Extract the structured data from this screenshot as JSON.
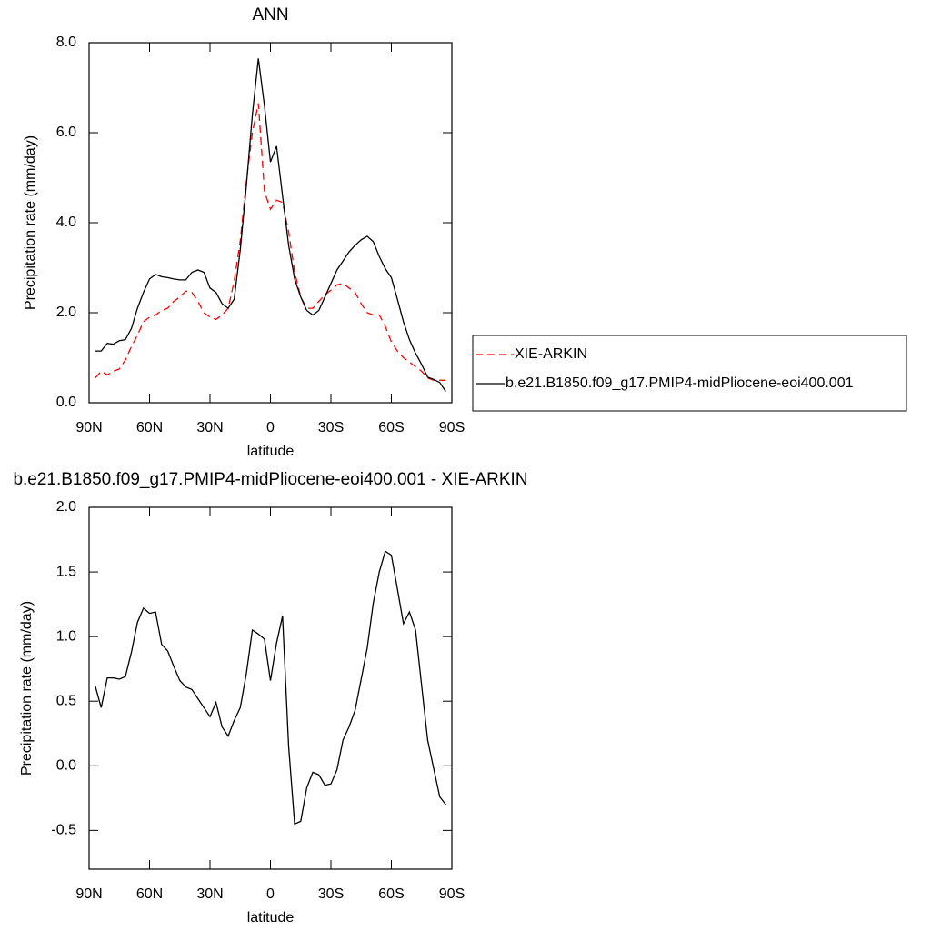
{
  "chart_data": [
    {
      "type": "line",
      "title": "ANN",
      "x_label": "latitude",
      "y_label": "Precipitation rate (mm/day)",
      "x": [
        87,
        84,
        81,
        78,
        75,
        72,
        69,
        66,
        63,
        60,
        57,
        54,
        51,
        48,
        45,
        42,
        39,
        36,
        33,
        30,
        27,
        24,
        21,
        18,
        15,
        12,
        9,
        6,
        3,
        0,
        -3,
        -6,
        -9,
        -12,
        -15,
        -18,
        -21,
        -24,
        -27,
        -30,
        -33,
        -36,
        -39,
        -42,
        -45,
        -48,
        -51,
        -54,
        -57,
        -60,
        -63,
        -66,
        -69,
        -72,
        -75,
        -78,
        -81,
        -84,
        -87
      ],
      "series": [
        {
          "name": "XIE-ARKIN",
          "color": "#ff0000",
          "line_style": "dashed",
          "values": [
            0.55,
            0.7,
            0.62,
            0.7,
            0.75,
            0.95,
            1.25,
            1.5,
            1.8,
            1.9,
            1.95,
            2.05,
            2.1,
            2.25,
            2.35,
            2.48,
            2.45,
            2.25,
            2.0,
            1.9,
            1.85,
            1.95,
            2.1,
            2.7,
            3.6,
            4.9,
            6.0,
            6.65,
            4.7,
            4.3,
            4.5,
            4.45,
            3.8,
            2.9,
            2.35,
            2.1,
            2.1,
            2.25,
            2.4,
            2.5,
            2.62,
            2.65,
            2.55,
            2.45,
            2.2,
            2.0,
            1.95,
            1.95,
            1.7,
            1.35,
            1.15,
            1.0,
            0.9,
            0.8,
            0.7,
            0.55,
            0.5,
            0.5,
            0.5
          ]
        },
        {
          "name": "b.e21.B1850.f09_g17.PMIP4-midPliocene-eoi400.001",
          "color": "#000000",
          "line_style": "solid",
          "values": [
            1.15,
            1.15,
            1.32,
            1.3,
            1.38,
            1.4,
            1.65,
            2.1,
            2.45,
            2.75,
            2.85,
            2.8,
            2.78,
            2.75,
            2.73,
            2.73,
            2.9,
            2.95,
            2.9,
            2.55,
            2.45,
            2.2,
            2.1,
            2.3,
            3.4,
            4.8,
            6.4,
            7.65,
            6.6,
            5.35,
            5.7,
            4.6,
            3.5,
            2.75,
            2.35,
            2.05,
            1.95,
            2.05,
            2.35,
            2.65,
            2.95,
            3.15,
            3.35,
            3.5,
            3.62,
            3.7,
            3.58,
            3.25,
            2.98,
            2.78,
            2.3,
            1.8,
            1.4,
            1.1,
            0.85,
            0.57,
            0.52,
            0.45,
            0.25
          ]
        }
      ],
      "xlim": [
        90,
        -90
      ],
      "xticks": [
        {
          "value": 90,
          "label": "90N"
        },
        {
          "value": 60,
          "label": "60N"
        },
        {
          "value": 30,
          "label": "30N"
        },
        0,
        {
          "value": -30,
          "label": "30S"
        },
        {
          "value": -60,
          "label": "60S"
        },
        {
          "value": -90,
          "label": "90S"
        }
      ],
      "ylim": [
        0,
        8
      ],
      "yticks": [
        {
          "value": 0,
          "label": "0.0"
        },
        {
          "value": 2,
          "label": "2.0"
        },
        {
          "value": 4,
          "label": "4.0"
        },
        {
          "value": 6,
          "label": "6.0"
        },
        {
          "value": 8,
          "label": "8.0"
        }
      ],
      "legend": "right"
    },
    {
      "type": "line",
      "title": "b.e21.B1850.f09_g17.PMIP4-midPliocene-eoi400.001 - XIE-ARKIN",
      "x_label": "latitude",
      "y_label": "Precipitation rate (mm/day)",
      "x": [
        87,
        84,
        81,
        78,
        75,
        72,
        69,
        66,
        63,
        60,
        57,
        54,
        51,
        48,
        45,
        42,
        39,
        36,
        33,
        30,
        27,
        24,
        21,
        18,
        15,
        12,
        9,
        6,
        3,
        0,
        -3,
        -6,
        -9,
        -12,
        -15,
        -18,
        -21,
        -24,
        -27,
        -30,
        -33,
        -36,
        -39,
        -42,
        -45,
        -48,
        -51,
        -54,
        -57,
        -60,
        -63,
        -66,
        -69,
        -72,
        -75,
        -78,
        -81,
        -84,
        -87
      ],
      "values": [
        0.62,
        0.45,
        0.68,
        0.68,
        0.67,
        0.69,
        0.88,
        1.11,
        1.22,
        1.18,
        1.19,
        0.94,
        0.89,
        0.77,
        0.66,
        0.61,
        0.59,
        0.52,
        0.45,
        0.38,
        0.49,
        0.3,
        0.23,
        0.35,
        0.45,
        0.71,
        1.05,
        1.02,
        0.98,
        0.66,
        0.95,
        1.16,
        0.15,
        -0.45,
        -0.43,
        -0.17,
        -0.05,
        -0.07,
        -0.15,
        -0.14,
        -0.03,
        0.2,
        0.3,
        0.43,
        0.67,
        0.91,
        1.26,
        1.5,
        1.66,
        1.63,
        1.37,
        1.1,
        1.19,
        1.05,
        0.62,
        0.2,
        -0.02,
        -0.24,
        -0.3
      ],
      "color": "#000000",
      "xlim": [
        90,
        -90
      ],
      "xticks": [
        {
          "value": 90,
          "label": "90N"
        },
        {
          "value": 60,
          "label": "60N"
        },
        {
          "value": 30,
          "label": "30N"
        },
        0,
        {
          "value": -30,
          "label": "30S"
        },
        {
          "value": -60,
          "label": "60S"
        },
        {
          "value": -90,
          "label": "90S"
        }
      ],
      "ylim": [
        -0.8,
        2.0
      ],
      "yticks": [
        {
          "value": -0.5,
          "label": "-0.5"
        },
        {
          "value": 0,
          "label": "0.0"
        },
        0.5,
        {
          "value": 1,
          "label": "1.0"
        },
        1.5,
        {
          "value": 2,
          "label": "2.0"
        }
      ]
    }
  ]
}
